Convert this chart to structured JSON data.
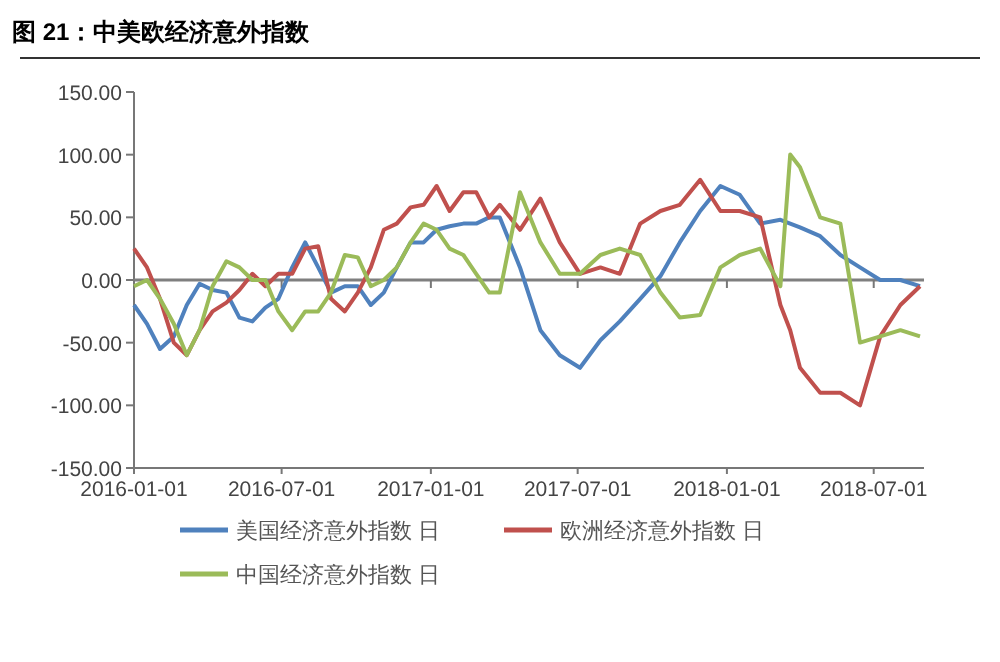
{
  "chart_data": {
    "type": "line",
    "title": "图 21：中美欧经济意外指数",
    "x": [
      "2016-01-01",
      "2016-01-17",
      "2016-02-02",
      "2016-02-19",
      "2016-03-06",
      "2016-03-22",
      "2016-04-07",
      "2016-04-24",
      "2016-05-10",
      "2016-05-26",
      "2016-06-11",
      "2016-06-27",
      "2016-07-14",
      "2016-07-30",
      "2016-08-15",
      "2016-08-31",
      "2016-09-17",
      "2016-10-03",
      "2016-10-19",
      "2016-11-04",
      "2016-11-20",
      "2016-12-07",
      "2016-12-23",
      "2017-01-08",
      "2017-01-24",
      "2017-02-10",
      "2017-02-26",
      "2017-03-14",
      "2017-03-27",
      "2017-04-21",
      "2017-05-16",
      "2017-06-09",
      "2017-07-04",
      "2017-07-29",
      "2017-08-22",
      "2017-09-16",
      "2017-10-11",
      "2017-11-04",
      "2017-11-29",
      "2017-12-24",
      "2018-01-17",
      "2018-02-11",
      "2018-03-08",
      "2018-03-20",
      "2018-04-01",
      "2018-04-26",
      "2018-05-21",
      "2018-06-14",
      "2018-07-09",
      "2018-08-03",
      "2018-08-27"
    ],
    "series": [
      {
        "name": "美国经济意外指数 日",
        "color": "#4f81bd",
        "values": [
          -20,
          -35,
          -55,
          -45,
          -20,
          -3,
          -8,
          -10,
          -30,
          -33,
          -22,
          -15,
          10,
          30,
          10,
          -10,
          -5,
          -5,
          -20,
          -10,
          10,
          30,
          30,
          40,
          43,
          45,
          45,
          50,
          50,
          10,
          -40,
          -60,
          -70,
          -48,
          -33,
          -15,
          3,
          30,
          55,
          75,
          68,
          45,
          48,
          45,
          42,
          35,
          20,
          10,
          0,
          0,
          -5
        ]
      },
      {
        "name": "欧洲经济意外指数 日",
        "color": "#c0504d",
        "values": [
          25,
          10,
          -15,
          -50,
          -60,
          -40,
          -25,
          -18,
          -8,
          5,
          -5,
          5,
          5,
          25,
          27,
          -15,
          -25,
          -10,
          10,
          40,
          45,
          58,
          60,
          75,
          55,
          70,
          70,
          50,
          60,
          40,
          65,
          30,
          5,
          10,
          5,
          45,
          55,
          60,
          80,
          55,
          55,
          50,
          -20,
          -40,
          -70,
          -90,
          -90,
          -100,
          -45,
          -20,
          -5
        ]
      },
      {
        "name": "中国经济意外指数 日",
        "color": "#9bbb59",
        "values": [
          -5,
          0,
          -15,
          -35,
          -60,
          -40,
          -5,
          15,
          10,
          0,
          0,
          -25,
          -40,
          -25,
          -25,
          -10,
          20,
          18,
          -5,
          0,
          10,
          30,
          45,
          40,
          25,
          20,
          5,
          -10,
          -10,
          70,
          30,
          5,
          5,
          20,
          25,
          20,
          -10,
          -30,
          -28,
          10,
          20,
          25,
          -5,
          100,
          90,
          50,
          45,
          -50,
          -45,
          -40,
          -45
        ]
      }
    ],
    "xlim": [
      "2016-01-01",
      "2018-09-01"
    ],
    "xticks": [
      "2016-01-01",
      "2016-07-01",
      "2017-01-01",
      "2017-07-01",
      "2018-01-01",
      "2018-07-01"
    ],
    "ylim": [
      -150,
      150
    ],
    "yticks": [
      {
        "value": 150,
        "label": "150.00"
      },
      {
        "value": 100,
        "label": "100.00"
      },
      {
        "value": 50,
        "label": "50.00"
      },
      {
        "value": 0,
        "label": "0.00"
      },
      {
        "value": -50,
        "label": "-50.00"
      },
      {
        "value": -100,
        "label": "-100.00"
      },
      {
        "value": -150,
        "label": "-150.00"
      }
    ],
    "ref_lines": [
      {
        "axis": "y",
        "value": 0,
        "color": "#7f7f7f",
        "line_style": "solid"
      }
    ],
    "grid": false,
    "legend": "bottom",
    "marker": "none",
    "line_style": "solid"
  }
}
